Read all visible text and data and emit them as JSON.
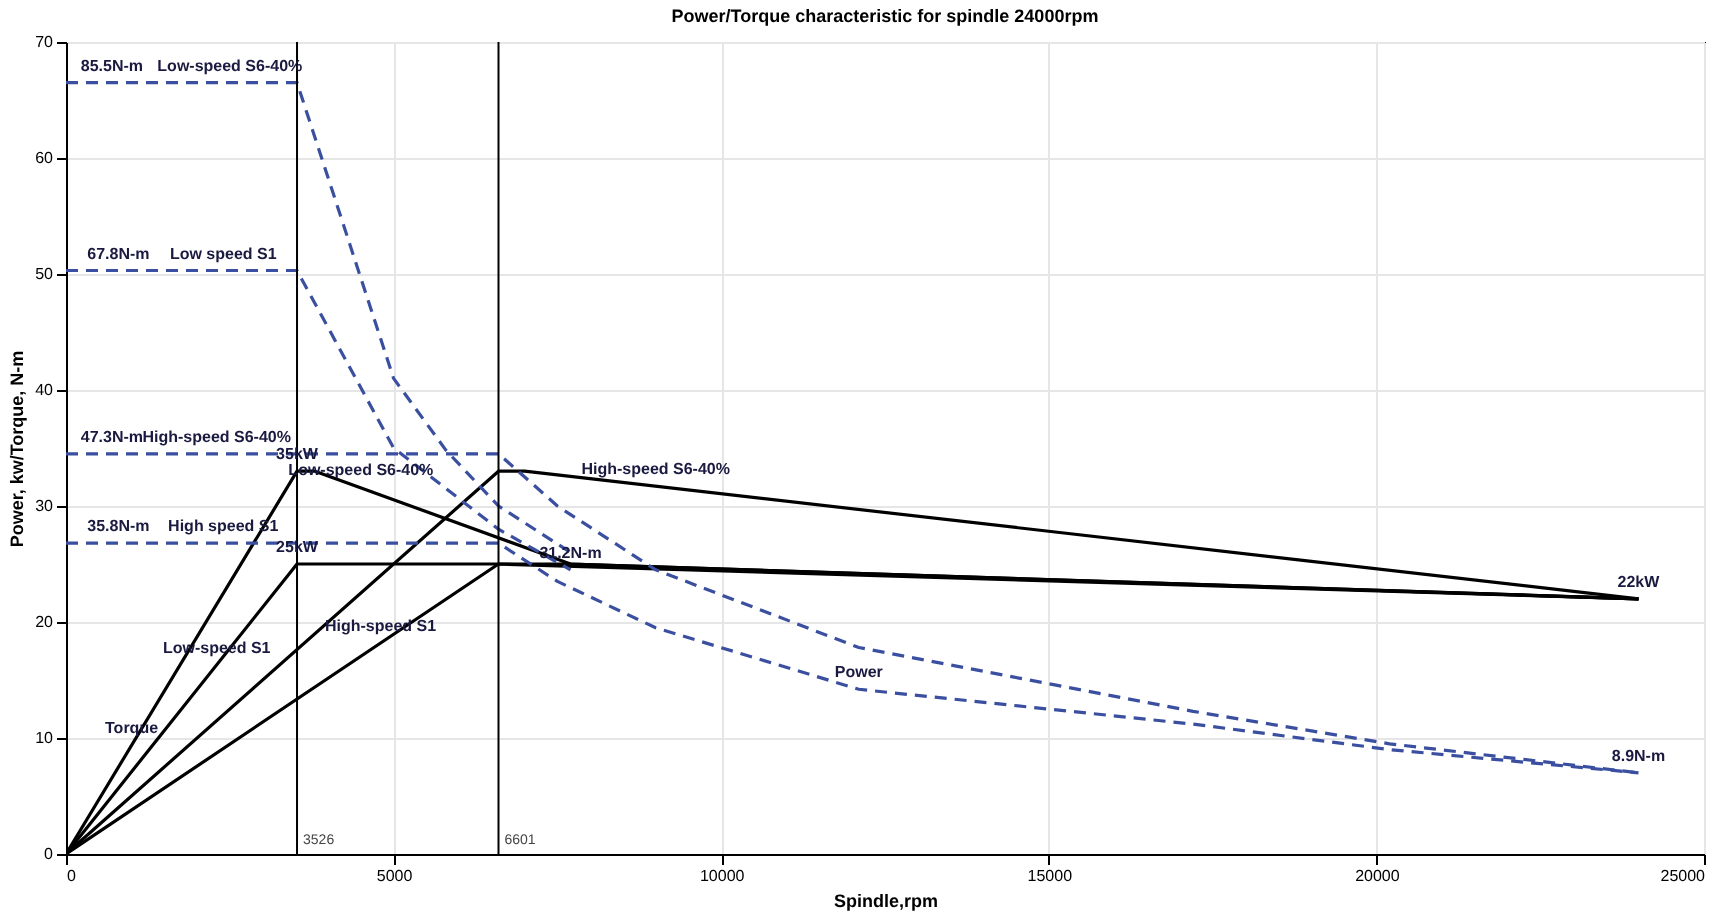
{
  "chart_data": {
    "type": "line",
    "title": "Power/Torque characteristic for spindle 24000rpm",
    "xlabel": "Spindle,rpm",
    "ylabel": "Power, kw/Torque, N-m",
    "xlim": [
      0,
      25000
    ],
    "xticks": [
      0,
      5000,
      10000,
      15000,
      20000,
      25000
    ],
    "ylim": [
      0,
      70
    ],
    "yticks": [
      0,
      10,
      20,
      30,
      40,
      50,
      60,
      70
    ],
    "grid": true,
    "series": [
      {
        "color": "#000000",
        "line_style": "solid",
        "x": [
          0,
          3526,
          3800,
          7700,
          24000
        ],
        "values": [
          0,
          33,
          33,
          25,
          22
        ]
      },
      {
        "color": "#000000",
        "line_style": "solid",
        "x": [
          0,
          3526,
          7700,
          24000
        ],
        "values": [
          0,
          25,
          25,
          22
        ]
      },
      {
        "color": "#000000",
        "line_style": "solid",
        "x": [
          0,
          6601,
          7000,
          24000
        ],
        "values": [
          0,
          33,
          33,
          22
        ]
      },
      {
        "color": "#000000",
        "line_style": "solid",
        "x": [
          0,
          6601,
          24000
        ],
        "values": [
          0,
          25,
          22
        ]
      },
      {
        "color": "#3a4fa0",
        "line_style": "dashed",
        "x": [
          0,
          3526,
          5000,
          5800,
          6601,
          7700
        ],
        "values": [
          66.5,
          66.5,
          41,
          34.8,
          30,
          26
        ]
      },
      {
        "color": "#3a4fa0",
        "line_style": "dashed",
        "x": [
          0,
          3526,
          5000,
          6601,
          7700
        ],
        "values": [
          50.3,
          50.3,
          35,
          28,
          24.5
        ]
      },
      {
        "color": "#3a4fa0",
        "line_style": "dashed",
        "x": [
          0,
          6601,
          7500,
          9000,
          12100,
          17200,
          20200,
          24000
        ],
        "values": [
          34.5,
          34.5,
          30,
          24.5,
          17.8,
          12.3,
          9.5,
          7
        ]
      },
      {
        "color": "#3a4fa0",
        "line_style": "dashed",
        "x": [
          0,
          6601,
          7500,
          9000,
          12100,
          17200,
          20200,
          24000
        ],
        "values": [
          26.8,
          26.8,
          23.5,
          19.5,
          14.2,
          11.2,
          9,
          7
        ]
      }
    ],
    "ref_lines": [
      {
        "axis": "x",
        "value": 3526,
        "label": "3526",
        "color": "#000000"
      },
      {
        "axis": "x",
        "value": 6601,
        "label": "6601",
        "color": "#000000"
      }
    ],
    "annotations": [
      {
        "text": "85.5N-m",
        "x": 700,
        "y": 66.5
      },
      {
        "text": "Low-speed S6-40%",
        "x": 2500,
        "y": 66.5
      },
      {
        "text": "67.8N-m",
        "x": 800,
        "y": 50.3
      },
      {
        "text": "Low speed S1",
        "x": 2400,
        "y": 50.3
      },
      {
        "text": "47.3N-m",
        "x": 700,
        "y": 34.5
      },
      {
        "text": "High-speed S6-40%",
        "x": 2300,
        "y": 34.5
      },
      {
        "text": "35.8N-m",
        "x": 800,
        "y": 26.8
      },
      {
        "text": "High speed S1",
        "x": 2400,
        "y": 26.8
      },
      {
        "text": "31.2N-m",
        "x": 7700,
        "y": 24.5
      },
      {
        "text": "35kW",
        "x": 3526,
        "y": 33
      },
      {
        "text": "25kW",
        "x": 3526,
        "y": 25
      },
      {
        "text": "22kW",
        "x": 24000,
        "y": 22
      },
      {
        "text": "8.9N-m",
        "x": 24000,
        "y": 7
      },
      {
        "text": "Torque",
        "x": 1000,
        "y": 9.4
      },
      {
        "text": "Power",
        "x": 12100,
        "y": 14.2
      },
      {
        "text": "Low-speed S6-40%",
        "x": 4500,
        "y": 31.6
      },
      {
        "text": "High-speed S6-40%",
        "x": 9000,
        "y": 31.7
      },
      {
        "text": "High-speed S1",
        "x": 4800,
        "y": 18.2
      },
      {
        "text": "Low-speed S1",
        "x": 2300,
        "y": 16.3
      }
    ]
  }
}
